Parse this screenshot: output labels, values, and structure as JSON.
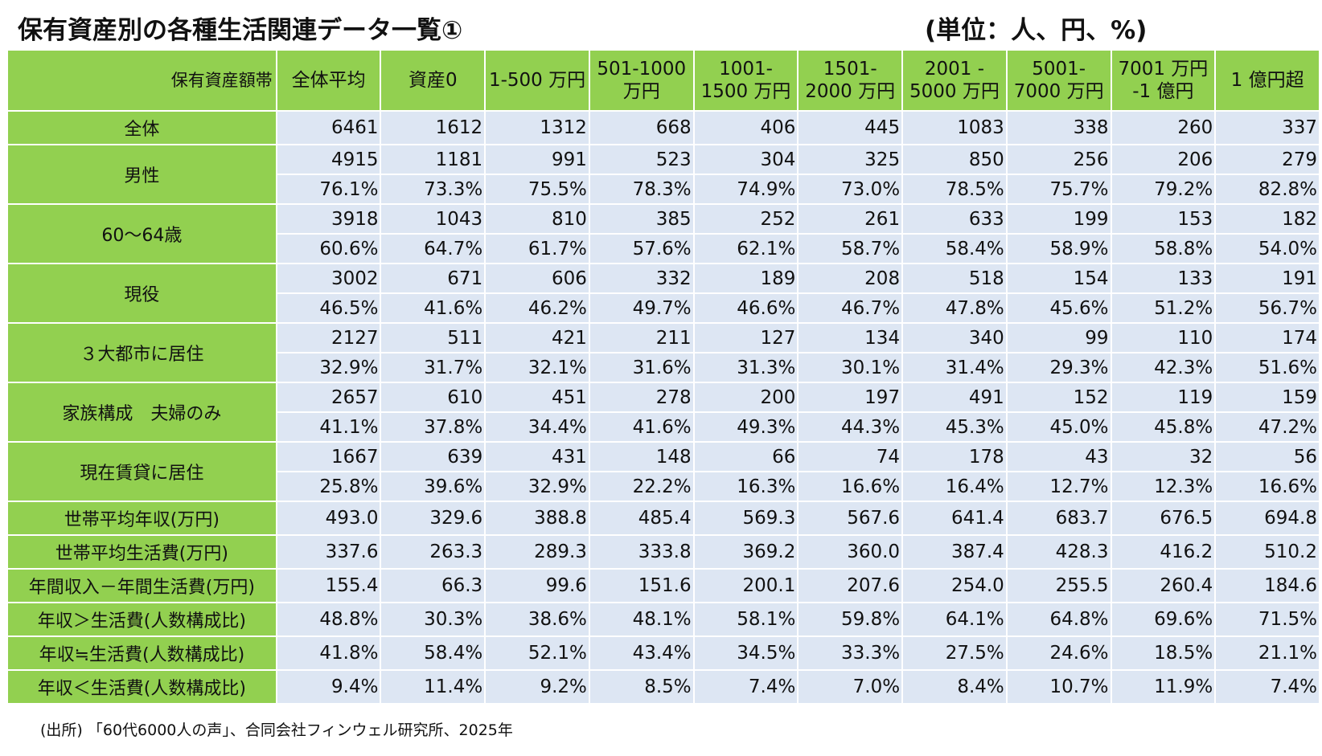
{
  "title": "保有資産別の各種生活関連データ一覧①",
  "unit": "(単位：人、円、%)",
  "colors": {
    "header_green": "#92d050",
    "cell_blue": "#dde6f3"
  },
  "table": {
    "corner": "保有資産額帯",
    "columns": [
      "全体平均",
      "資産0",
      "1-500 万円",
      "501-1000 万円",
      "1001- 1500 万円",
      "1501- 2000 万円",
      "2001 - 5000 万円",
      "5001- 7000 万円",
      "7001 万円 -1 億円",
      "1 億円超"
    ],
    "rows": [
      {
        "label": "全体",
        "values": [
          "6461",
          "1612",
          "1312",
          "668",
          "406",
          "445",
          "1083",
          "338",
          "260",
          "337"
        ]
      },
      {
        "label": "男性",
        "values": [
          "4915",
          "1181",
          "991",
          "523",
          "304",
          "325",
          "850",
          "256",
          "206",
          "279"
        ],
        "pct": [
          "76.1%",
          "73.3%",
          "75.5%",
          "78.3%",
          "74.9%",
          "73.0%",
          "78.5%",
          "75.7%",
          "79.2%",
          "82.8%"
        ]
      },
      {
        "label": "60～64歳",
        "values": [
          "3918",
          "1043",
          "810",
          "385",
          "252",
          "261",
          "633",
          "199",
          "153",
          "182"
        ],
        "pct": [
          "60.6%",
          "64.7%",
          "61.7%",
          "57.6%",
          "62.1%",
          "58.7%",
          "58.4%",
          "58.9%",
          "58.8%",
          "54.0%"
        ]
      },
      {
        "label": "現役",
        "values": [
          "3002",
          "671",
          "606",
          "332",
          "189",
          "208",
          "518",
          "154",
          "133",
          "191"
        ],
        "pct": [
          "46.5%",
          "41.6%",
          "46.2%",
          "49.7%",
          "46.6%",
          "46.7%",
          "47.8%",
          "45.6%",
          "51.2%",
          "56.7%"
        ]
      },
      {
        "label": "３大都市に居住",
        "values": [
          "2127",
          "511",
          "421",
          "211",
          "127",
          "134",
          "340",
          "99",
          "110",
          "174"
        ],
        "pct": [
          "32.9%",
          "31.7%",
          "32.1%",
          "31.6%",
          "31.3%",
          "30.1%",
          "31.4%",
          "29.3%",
          "42.3%",
          "51.6%"
        ]
      },
      {
        "label": "家族構成　夫婦のみ",
        "values": [
          "2657",
          "610",
          "451",
          "278",
          "200",
          "197",
          "491",
          "152",
          "119",
          "159"
        ],
        "pct": [
          "41.1%",
          "37.8%",
          "34.4%",
          "41.6%",
          "49.3%",
          "44.3%",
          "45.3%",
          "45.0%",
          "45.8%",
          "47.2%"
        ]
      },
      {
        "label": "現在賃貸に居住",
        "values": [
          "1667",
          "639",
          "431",
          "148",
          "66",
          "74",
          "178",
          "43",
          "32",
          "56"
        ],
        "pct": [
          "25.8%",
          "39.6%",
          "32.9%",
          "22.2%",
          "16.3%",
          "16.6%",
          "16.4%",
          "12.7%",
          "12.3%",
          "16.6%"
        ]
      },
      {
        "label": "世帯平均年収(万円)",
        "values": [
          "493.0",
          "329.6",
          "388.8",
          "485.4",
          "569.3",
          "567.6",
          "641.4",
          "683.7",
          "676.5",
          "694.8"
        ]
      },
      {
        "label": "世帯平均生活費(万円)",
        "values": [
          "337.6",
          "263.3",
          "289.3",
          "333.8",
          "369.2",
          "360.0",
          "387.4",
          "428.3",
          "416.2",
          "510.2"
        ]
      },
      {
        "label": "年間収入－年間生活費(万円)",
        "values": [
          "155.4",
          "66.3",
          "99.6",
          "151.6",
          "200.1",
          "207.6",
          "254.0",
          "255.5",
          "260.4",
          "184.6"
        ]
      },
      {
        "label": "年収＞生活費(人数構成比)",
        "values": [
          "48.8%",
          "30.3%",
          "38.6%",
          "48.1%",
          "58.1%",
          "59.8%",
          "64.1%",
          "64.8%",
          "69.6%",
          "71.5%"
        ]
      },
      {
        "label": "年収≒生活費(人数構成比)",
        "values": [
          "41.8%",
          "58.4%",
          "52.1%",
          "43.4%",
          "34.5%",
          "33.3%",
          "27.5%",
          "24.6%",
          "18.5%",
          "21.1%"
        ]
      },
      {
        "label": "年収＜生活費(人数構成比)",
        "values": [
          "9.4%",
          "11.4%",
          "9.2%",
          "8.5%",
          "7.4%",
          "7.0%",
          "8.4%",
          "10.7%",
          "11.9%",
          "7.4%"
        ]
      }
    ]
  },
  "source": "(出所) 「60代6000人の声」、合同会社フィンウェル研究所、2025年"
}
